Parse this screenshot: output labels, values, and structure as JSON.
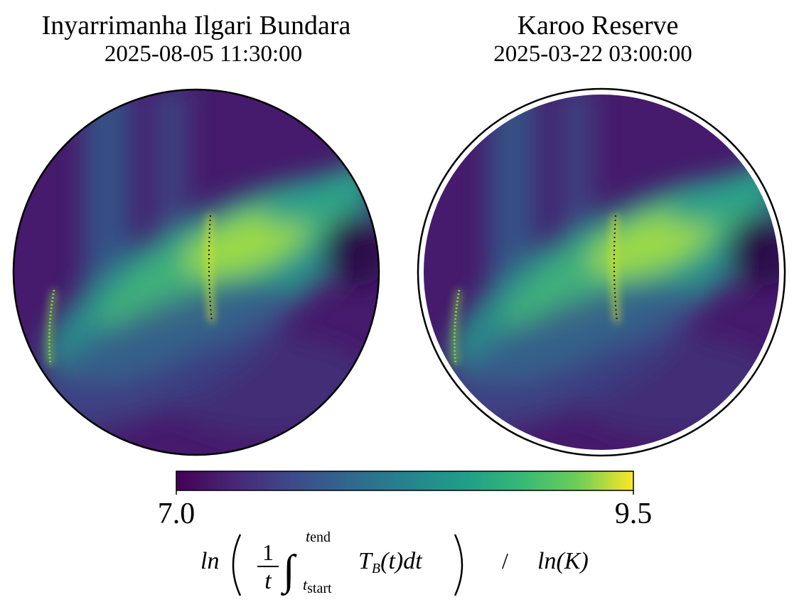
{
  "panels": [
    {
      "title": "Inyarrimanha Ilgari Bundara",
      "timestamp": "2025-08-05 11:30:00"
    },
    {
      "title": "Karoo Reserve",
      "timestamp": "2025-03-22 03:00:00"
    }
  ],
  "colorbar": {
    "colormap": "viridis",
    "range": [
      7.0,
      9.5
    ],
    "ticks": [
      {
        "value": 7.0,
        "label": "7.0"
      },
      {
        "value": 9.5,
        "label": "9.5"
      }
    ],
    "label": {
      "fn": "ln",
      "num": "1",
      "den": "t",
      "integral": "∫",
      "upper": "t",
      "upper_sub": "end",
      "lower": "t",
      "lower_sub": "start",
      "integrand": "T",
      "integrand_sub": "B",
      "integrand_rest": "(t)dt",
      "sep": "/",
      "unit": "ln(K)"
    }
  }
}
